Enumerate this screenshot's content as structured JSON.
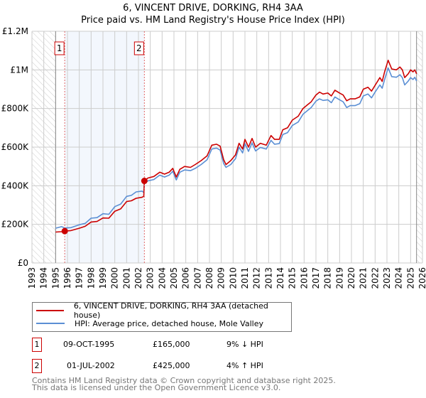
{
  "title_line1": "6, VINCENT DRIVE, DORKING, RH4 3AA",
  "title_line2": "Price paid vs. HM Land Registry's House Price Index (HPI)",
  "chart_data": {
    "type": "line",
    "title": "6, VINCENT DRIVE, DORKING, RH4 3AA — Price paid vs. HM Land Registry's House Price Index (HPI)",
    "xlim": [
      1993,
      2026
    ],
    "ylim": [
      0,
      1200000
    ],
    "x_ticks": [
      "1993",
      "1994",
      "1995",
      "1996",
      "1997",
      "1998",
      "1999",
      "2000",
      "2001",
      "2002",
      "2003",
      "2004",
      "2005",
      "2006",
      "2007",
      "2008",
      "2009",
      "2010",
      "2011",
      "2012",
      "2013",
      "2014",
      "2015",
      "2016",
      "2017",
      "2018",
      "2019",
      "2020",
      "2021",
      "2022",
      "2023",
      "2024",
      "2025",
      "2026"
    ],
    "y_ticks": [
      {
        "v": 0,
        "label": "£0"
      },
      {
        "v": 200000,
        "label": "£200K"
      },
      {
        "v": 400000,
        "label": "£400K"
      },
      {
        "v": 600000,
        "label": "£600K"
      },
      {
        "v": 800000,
        "label": "£800K"
      },
      {
        "v": 1000000,
        "label": "£1M"
      },
      {
        "v": 1200000,
        "label": "£1.2M"
      }
    ],
    "grid": true,
    "data_range": [
      1995,
      2025.5
    ],
    "series": [
      {
        "name": "6, VINCENT DRIVE, DORKING, RH4 3AA (detached house)",
        "color": "#cc0000",
        "points": [
          [
            1995,
            160000
          ],
          [
            1995.5,
            162000
          ],
          [
            1995.77,
            165000
          ],
          [
            1996.3,
            168000
          ],
          [
            1997,
            180000
          ],
          [
            1997.5,
            190000
          ],
          [
            1998,
            212000
          ],
          [
            1998.5,
            215000
          ],
          [
            1999,
            233000
          ],
          [
            1999.5,
            232000
          ],
          [
            2000,
            268000
          ],
          [
            2000.5,
            280000
          ],
          [
            2001,
            318000
          ],
          [
            2001.4,
            322000
          ],
          [
            2001.8,
            335000
          ],
          [
            2002.3,
            340000
          ],
          [
            2002.45,
            345000
          ],
          [
            2002.5,
            425000
          ],
          [
            2002.8,
            440000
          ],
          [
            2003.3,
            448000
          ],
          [
            2003.8,
            470000
          ],
          [
            2004.2,
            460000
          ],
          [
            2004.6,
            470000
          ],
          [
            2004.9,
            490000
          ],
          [
            2005.2,
            445000
          ],
          [
            2005.5,
            485000
          ],
          [
            2005.9,
            500000
          ],
          [
            2006.4,
            495000
          ],
          [
            2006.8,
            510000
          ],
          [
            2007.3,
            530000
          ],
          [
            2007.8,
            555000
          ],
          [
            2008.2,
            610000
          ],
          [
            2008.6,
            615000
          ],
          [
            2008.9,
            605000
          ],
          [
            2009.2,
            535000
          ],
          [
            2009.4,
            510000
          ],
          [
            2009.8,
            530000
          ],
          [
            2010.2,
            560000
          ],
          [
            2010.5,
            620000
          ],
          [
            2010.8,
            590000
          ],
          [
            2011.0,
            640000
          ],
          [
            2011.3,
            600000
          ],
          [
            2011.6,
            645000
          ],
          [
            2011.9,
            600000
          ],
          [
            2012.3,
            620000
          ],
          [
            2012.8,
            610000
          ],
          [
            2013.2,
            660000
          ],
          [
            2013.5,
            640000
          ],
          [
            2013.9,
            640000
          ],
          [
            2014.2,
            690000
          ],
          [
            2014.6,
            700000
          ],
          [
            2015.0,
            740000
          ],
          [
            2015.5,
            760000
          ],
          [
            2015.9,
            800000
          ],
          [
            2016.3,
            820000
          ],
          [
            2016.6,
            835000
          ],
          [
            2017.0,
            870000
          ],
          [
            2017.3,
            885000
          ],
          [
            2017.6,
            875000
          ],
          [
            2018.0,
            880000
          ],
          [
            2018.3,
            865000
          ],
          [
            2018.6,
            895000
          ],
          [
            2019.0,
            880000
          ],
          [
            2019.3,
            870000
          ],
          [
            2019.6,
            840000
          ],
          [
            2019.9,
            850000
          ],
          [
            2020.3,
            850000
          ],
          [
            2020.7,
            860000
          ],
          [
            2021.0,
            900000
          ],
          [
            2021.4,
            910000
          ],
          [
            2021.7,
            890000
          ],
          [
            2022.0,
            920000
          ],
          [
            2022.4,
            960000
          ],
          [
            2022.6,
            940000
          ],
          [
            2022.8,
            990000
          ],
          [
            2023.1,
            1050000
          ],
          [
            2023.4,
            1005000
          ],
          [
            2023.8,
            1000000
          ],
          [
            2024.1,
            1015000
          ],
          [
            2024.3,
            1000000
          ],
          [
            2024.5,
            960000
          ],
          [
            2024.8,
            980000
          ],
          [
            2025.0,
            1000000
          ],
          [
            2025.2,
            990000
          ],
          [
            2025.35,
            1000000
          ],
          [
            2025.5,
            980000
          ]
        ]
      },
      {
        "name": "HPI: Average price, detached house, Mole Valley",
        "color": "#5b8fd4",
        "points": [
          [
            1995,
            180000
          ],
          [
            1995.5,
            188000
          ],
          [
            1995.77,
            181000
          ],
          [
            1996.3,
            183000
          ],
          [
            1997,
            198000
          ],
          [
            1997.5,
            205000
          ],
          [
            1998,
            232000
          ],
          [
            1998.5,
            235000
          ],
          [
            1999,
            255000
          ],
          [
            1999.5,
            252000
          ],
          [
            2000,
            292000
          ],
          [
            2000.5,
            305000
          ],
          [
            2001,
            345000
          ],
          [
            2001.4,
            350000
          ],
          [
            2001.8,
            368000
          ],
          [
            2002.3,
            372000
          ],
          [
            2002.45,
            365000
          ],
          [
            2002.5,
            410000
          ],
          [
            2002.8,
            425000
          ],
          [
            2003.3,
            432000
          ],
          [
            2003.8,
            455000
          ],
          [
            2004.2,
            445000
          ],
          [
            2004.6,
            455000
          ],
          [
            2004.9,
            475000
          ],
          [
            2005.2,
            430000
          ],
          [
            2005.5,
            470000
          ],
          [
            2005.9,
            482000
          ],
          [
            2006.4,
            478000
          ],
          [
            2006.8,
            490000
          ],
          [
            2007.3,
            510000
          ],
          [
            2007.8,
            535000
          ],
          [
            2008.2,
            590000
          ],
          [
            2008.6,
            595000
          ],
          [
            2008.9,
            585000
          ],
          [
            2009.2,
            515000
          ],
          [
            2009.4,
            495000
          ],
          [
            2009.8,
            510000
          ],
          [
            2010.2,
            540000
          ],
          [
            2010.5,
            600000
          ],
          [
            2010.8,
            570000
          ],
          [
            2011.0,
            618000
          ],
          [
            2011.3,
            578000
          ],
          [
            2011.6,
            622000
          ],
          [
            2011.9,
            580000
          ],
          [
            2012.3,
            598000
          ],
          [
            2012.8,
            590000
          ],
          [
            2013.2,
            635000
          ],
          [
            2013.5,
            615000
          ],
          [
            2013.9,
            618000
          ],
          [
            2014.2,
            665000
          ],
          [
            2014.6,
            675000
          ],
          [
            2015.0,
            712000
          ],
          [
            2015.5,
            730000
          ],
          [
            2015.9,
            770000
          ],
          [
            2016.3,
            790000
          ],
          [
            2016.6,
            805000
          ],
          [
            2017.0,
            838000
          ],
          [
            2017.3,
            850000
          ],
          [
            2017.6,
            842000
          ],
          [
            2018.0,
            845000
          ],
          [
            2018.3,
            830000
          ],
          [
            2018.6,
            860000
          ],
          [
            2019.0,
            845000
          ],
          [
            2019.3,
            835000
          ],
          [
            2019.6,
            805000
          ],
          [
            2019.9,
            815000
          ],
          [
            2020.3,
            815000
          ],
          [
            2020.7,
            825000
          ],
          [
            2021.0,
            865000
          ],
          [
            2021.4,
            875000
          ],
          [
            2021.7,
            855000
          ],
          [
            2022.0,
            885000
          ],
          [
            2022.4,
            922000
          ],
          [
            2022.6,
            905000
          ],
          [
            2022.8,
            950000
          ],
          [
            2023.1,
            1010000
          ],
          [
            2023.4,
            965000
          ],
          [
            2023.8,
            962000
          ],
          [
            2024.1,
            975000
          ],
          [
            2024.3,
            960000
          ],
          [
            2024.5,
            922000
          ],
          [
            2024.8,
            942000
          ],
          [
            2025.0,
            960000
          ],
          [
            2025.2,
            950000
          ],
          [
            2025.35,
            962000
          ],
          [
            2025.5,
            942000
          ]
        ]
      }
    ],
    "sales": [
      {
        "id": "1",
        "x": 1995.77,
        "y": 165000,
        "date": "09-OCT-1995",
        "price": "£165,000",
        "hpi": "9% ↓ HPI"
      },
      {
        "id": "2",
        "x": 2002.5,
        "y": 425000,
        "date": "01-JUL-2002",
        "price": "£425,000",
        "hpi": "4% ↑ HPI"
      }
    ]
  },
  "legend": {
    "property": "6, VINCENT DRIVE, DORKING, RH4 3AA (detached house)",
    "hpi": "HPI: Average price, detached house, Mole Valley"
  },
  "footer": {
    "line1": "Contains HM Land Registry data © Crown copyright and database right 2025.",
    "line2": "This data is licensed under the Open Government Licence v3.0."
  }
}
